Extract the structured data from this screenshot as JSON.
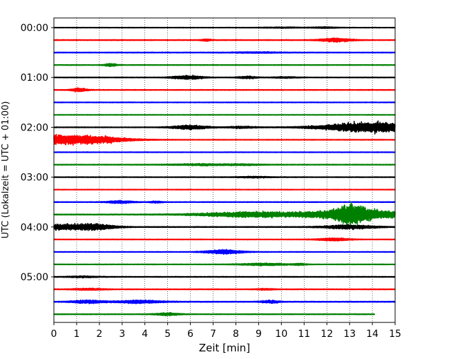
{
  "chart_data": {
    "type": "line",
    "title": "",
    "xlabel": "Zeit  [min]",
    "ylabel": "UTC (Lokalzeit = UTC + 01:00)",
    "xlim": [
      0,
      15
    ],
    "x_ticks": [
      "0",
      "1",
      "2",
      "3",
      "4",
      "5",
      "6",
      "7",
      "8",
      "9",
      "10",
      "11",
      "12",
      "13",
      "14",
      "15"
    ],
    "y_ticks": [
      "00:00",
      "01:00",
      "02:00",
      "03:00",
      "04:00",
      "05:00"
    ],
    "grid": "x-dotted",
    "trace_interval_min": 15,
    "colors_cycle": [
      "#000000",
      "#ff0000",
      "#0000ff",
      "#008000"
    ],
    "series": [
      {
        "start": "00:00",
        "color": "#000000",
        "noise": 0.35,
        "events": [
          {
            "t": 10.0,
            "amp": 0.5,
            "w": 0.6
          },
          {
            "t": 11.9,
            "amp": 0.8,
            "w": 0.4
          }
        ]
      },
      {
        "start": "00:15",
        "color": "#ff0000",
        "noise": 0.5,
        "events": [
          {
            "t": 6.7,
            "amp": 1.4,
            "w": 0.15
          },
          {
            "t": 12.4,
            "amp": 2.2,
            "w": 0.5
          }
        ]
      },
      {
        "start": "00:30",
        "color": "#0000ff",
        "noise": 0.5,
        "events": [
          {
            "t": 9.0,
            "amp": 0.6,
            "w": 0.8
          }
        ]
      },
      {
        "start": "00:45",
        "color": "#008000",
        "noise": 0.4,
        "events": [
          {
            "t": 2.5,
            "amp": 1.8,
            "w": 0.2
          }
        ]
      },
      {
        "start": "01:00",
        "color": "#000000",
        "noise": 0.4,
        "events": [
          {
            "t": 5.9,
            "amp": 2.2,
            "w": 0.5
          },
          {
            "t": 8.5,
            "amp": 1.4,
            "w": 0.3
          },
          {
            "t": 10.2,
            "amp": 0.8,
            "w": 0.4
          }
        ]
      },
      {
        "start": "01:15",
        "color": "#ff0000",
        "noise": 0.45,
        "events": [
          {
            "t": 1.1,
            "amp": 2.2,
            "w": 0.25
          }
        ]
      },
      {
        "start": "01:30",
        "color": "#0000ff",
        "noise": 0.4,
        "events": []
      },
      {
        "start": "01:45",
        "color": "#008000",
        "noise": 0.35,
        "events": []
      },
      {
        "start": "02:00",
        "color": "#000000",
        "noise": 0.4,
        "events": [
          {
            "t": 6.0,
            "amp": 2.5,
            "w": 0.6
          },
          {
            "t": 8.3,
            "amp": 1.2,
            "w": 0.5
          },
          {
            "t": 12.5,
            "amp": 2.0,
            "w": 1.2
          },
          {
            "t": 14.2,
            "amp": 5.5,
            "w": 1.2
          }
        ]
      },
      {
        "start": "02:15",
        "color": "#ff0000",
        "noise": 0.4,
        "events": [
          {
            "t": 0.3,
            "amp": 6.0,
            "w": 1.6
          },
          {
            "t": 2.3,
            "amp": 1.2,
            "w": 0.8
          }
        ]
      },
      {
        "start": "02:30",
        "color": "#0000ff",
        "noise": 0.4,
        "events": []
      },
      {
        "start": "02:45",
        "color": "#008000",
        "noise": 0.45,
        "events": [
          {
            "t": 6.5,
            "amp": 1.0,
            "w": 1.0
          },
          {
            "t": 8.5,
            "amp": 0.6,
            "w": 0.6
          }
        ]
      },
      {
        "start": "03:00",
        "color": "#000000",
        "noise": 0.4,
        "events": [
          {
            "t": 8.8,
            "amp": 0.7,
            "w": 0.6
          }
        ]
      },
      {
        "start": "03:15",
        "color": "#ff0000",
        "noise": 0.35,
        "events": []
      },
      {
        "start": "03:30",
        "color": "#0000ff",
        "noise": 0.45,
        "events": [
          {
            "t": 2.9,
            "amp": 1.6,
            "w": 0.4
          },
          {
            "t": 4.5,
            "amp": 1.0,
            "w": 0.2
          }
        ]
      },
      {
        "start": "03:45",
        "color": "#008000",
        "noise": 0.55,
        "events": [
          {
            "t": 9.0,
            "amp": 3.2,
            "w": 1.8
          },
          {
            "t": 12.2,
            "amp": 3.0,
            "w": 1.0
          },
          {
            "t": 13.1,
            "amp": 9.0,
            "w": 0.5
          },
          {
            "t": 14.4,
            "amp": 4.5,
            "w": 1.0
          }
        ]
      },
      {
        "start": "04:00",
        "color": "#000000",
        "noise": 0.5,
        "events": [
          {
            "t": 0.6,
            "amp": 3.5,
            "w": 0.9
          },
          {
            "t": 2.0,
            "amp": 2.2,
            "w": 0.6
          },
          {
            "t": 13.0,
            "amp": 2.5,
            "w": 0.8
          }
        ]
      },
      {
        "start": "04:15",
        "color": "#ff0000",
        "noise": 0.4,
        "events": [
          {
            "t": 12.3,
            "amp": 1.8,
            "w": 0.5
          }
        ]
      },
      {
        "start": "04:30",
        "color": "#0000ff",
        "noise": 0.4,
        "events": [
          {
            "t": 7.5,
            "amp": 2.5,
            "w": 0.6
          }
        ]
      },
      {
        "start": "04:45",
        "color": "#008000",
        "noise": 0.4,
        "events": [
          {
            "t": 9.3,
            "amp": 1.3,
            "w": 0.8
          },
          {
            "t": 10.8,
            "amp": 1.0,
            "w": 0.2
          }
        ]
      },
      {
        "start": "05:00",
        "color": "#000000",
        "noise": 0.45,
        "events": [
          {
            "t": 1.3,
            "amp": 0.8,
            "w": 0.5
          }
        ]
      },
      {
        "start": "05:15",
        "color": "#ff0000",
        "noise": 0.45,
        "events": [
          {
            "t": 1.5,
            "amp": 1.0,
            "w": 0.5
          },
          {
            "t": 9.3,
            "amp": 0.8,
            "w": 0.3
          }
        ]
      },
      {
        "start": "05:30",
        "color": "#0000ff",
        "noise": 0.55,
        "events": [
          {
            "t": 1.5,
            "amp": 1.8,
            "w": 0.5
          },
          {
            "t": 3.8,
            "amp": 1.8,
            "w": 0.7
          },
          {
            "t": 9.5,
            "amp": 1.5,
            "w": 0.3
          }
        ]
      },
      {
        "start": "05:45",
        "color": "#008000",
        "noise": 0.45,
        "events": [
          {
            "t": 5.0,
            "amp": 1.5,
            "w": 0.4
          }
        ],
        "end": 14.1
      }
    ]
  }
}
